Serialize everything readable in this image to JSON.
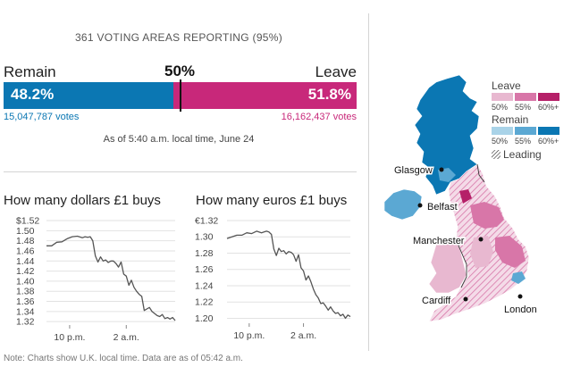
{
  "header": {
    "reporting": "361 VOTING AREAS REPORTING (95%)"
  },
  "result": {
    "remain_label": "Remain",
    "leave_label": "Leave",
    "midpoint_label": "50%",
    "remain_pct_text": "48.2%",
    "leave_pct_text": "51.8%",
    "remain_share": 48.2,
    "leave_share": 51.8,
    "remain_votes": "15,047,787 votes",
    "leave_votes": "16,162,437 votes",
    "as_of": "As of 5:40 a.m. local time, June 24",
    "remain_color": "#0b77b3",
    "leave_color": "#c8287a"
  },
  "chart_data": [
    {
      "type": "line",
      "title": "How many dollars £1 buys",
      "x_ticks": [
        "10 p.m.",
        "2 a.m."
      ],
      "y_ticks": [
        "$1.52",
        "1.50",
        "1.48",
        "1.46",
        "1.44",
        "1.42",
        "1.40",
        "1.38",
        "1.36",
        "1.34",
        "1.32"
      ],
      "ylim": [
        1.315,
        1.52
      ],
      "xlim": [
        0,
        100
      ],
      "tick_positions": [
        18,
        62
      ],
      "grid": "horizontal",
      "series": [
        {
          "x": [
            0,
            4,
            8,
            12,
            16,
            20,
            24,
            28,
            30,
            32,
            34,
            36,
            38,
            40,
            42,
            44,
            46,
            48,
            50,
            52,
            54,
            56,
            58,
            60,
            62,
            64,
            66,
            68,
            70,
            72,
            74,
            76,
            78,
            80,
            82,
            84,
            86,
            88,
            90,
            92,
            94,
            96,
            98,
            100
          ],
          "values": [
            1.47,
            1.47,
            1.477,
            1.478,
            1.484,
            1.488,
            1.489,
            1.486,
            1.488,
            1.487,
            1.488,
            1.48,
            1.45,
            1.438,
            1.448,
            1.44,
            1.442,
            1.437,
            1.44,
            1.44,
            1.435,
            1.428,
            1.438,
            1.414,
            1.41,
            1.392,
            1.402,
            1.388,
            1.38,
            1.374,
            1.37,
            1.342,
            1.345,
            1.348,
            1.34,
            1.336,
            1.332,
            1.33,
            1.334,
            1.326,
            1.328,
            1.325,
            1.328,
            1.322
          ]
        }
      ]
    },
    {
      "type": "line",
      "title": "How many euros £1 buys",
      "x_ticks": [
        "10 p.m.",
        "2 a.m."
      ],
      "y_ticks": [
        "€1.32",
        "1.30",
        "1.28",
        "1.26",
        "1.24",
        "1.22",
        "1.20"
      ],
      "ylim": [
        1.195,
        1.32
      ],
      "xlim": [
        0,
        100
      ],
      "tick_positions": [
        18,
        62
      ],
      "grid": "horizontal",
      "series": [
        {
          "x": [
            0,
            4,
            8,
            12,
            16,
            20,
            24,
            28,
            30,
            32,
            34,
            36,
            38,
            40,
            42,
            44,
            46,
            48,
            50,
            52,
            54,
            56,
            58,
            60,
            62,
            64,
            66,
            68,
            70,
            72,
            74,
            76,
            78,
            80,
            82,
            84,
            86,
            88,
            90,
            92,
            94,
            96,
            98,
            100
          ],
          "values": [
            1.298,
            1.3,
            1.302,
            1.302,
            1.305,
            1.304,
            1.307,
            1.305,
            1.306,
            1.307,
            1.306,
            1.303,
            1.285,
            1.277,
            1.286,
            1.282,
            1.283,
            1.279,
            1.282,
            1.281,
            1.278,
            1.27,
            1.278,
            1.262,
            1.258,
            1.247,
            1.252,
            1.245,
            1.236,
            1.229,
            1.225,
            1.218,
            1.219,
            1.215,
            1.21,
            1.214,
            1.209,
            1.206,
            1.207,
            1.203,
            1.205,
            1.2,
            1.204,
            1.202
          ]
        }
      ]
    }
  ],
  "map": {
    "legend_leave": "Leave",
    "legend_remain": "Remain",
    "legend_ticks": [
      "50%",
      "55%",
      "60%+"
    ],
    "legend_leading": "Leading",
    "leave_shades": [
      "#e8b8d0",
      "#d876a8",
      "#b52068"
    ],
    "remain_shades": [
      "#a9d3e8",
      "#5ba8d3",
      "#0b77b3"
    ],
    "cities": {
      "glasgow": "Glasgow",
      "belfast": "Belfast",
      "manchester": "Manchester",
      "cardiff": "Cardiff",
      "london": "London"
    }
  },
  "note": "Note: Charts show U.K. local time. Data are as of 05:42 a.m."
}
